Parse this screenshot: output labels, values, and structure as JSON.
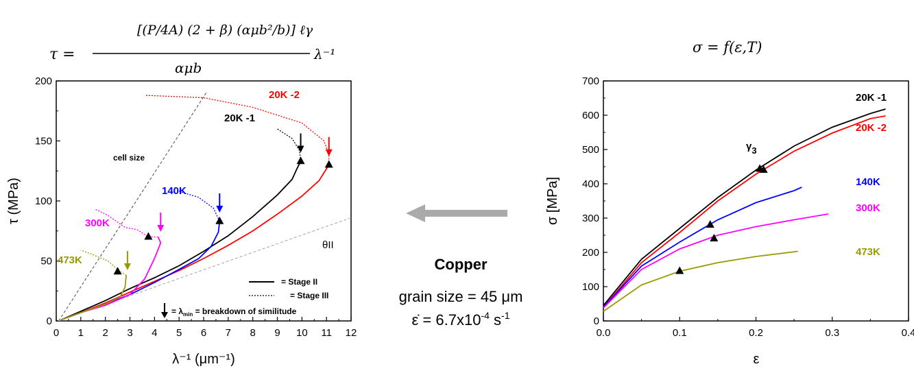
{
  "equation_left": {
    "lhs": "τ =",
    "numerator": "[(P/4A) (2 + β) (αμb²/b)] ℓγ",
    "denominator": "αμb",
    "factor": "λ⁻¹"
  },
  "equation_right": "σ = f(ε,T)",
  "center": {
    "title": "Copper",
    "line1": "grain size = 45 μm",
    "line2_prefix": "ε̇ = 6.7x10",
    "line2_exp": "-4",
    "line2_unit": " s",
    "line2_unit_exp": "-1"
  },
  "chart_data": [
    {
      "type": "line",
      "xlabel": "λ⁻¹ (μm⁻¹)",
      "ylabel": "τ (MPa)",
      "xlim": [
        0,
        12
      ],
      "ylim": [
        0,
        200
      ],
      "xticks": [
        0,
        1,
        2,
        3,
        4,
        5,
        6,
        7,
        8,
        9,
        10,
        11,
        12
      ],
      "yticks": [
        0,
        50,
        100,
        150,
        200
      ],
      "series": [
        {
          "name": "20K -1",
          "color": "#000000",
          "stage_ii": [
            [
              0.2,
              1
            ],
            [
              1,
              8
            ],
            [
              2,
              17
            ],
            [
              3,
              27
            ],
            [
              4,
              36
            ],
            [
              5,
              46
            ],
            [
              6,
              58
            ],
            [
              7,
              71
            ],
            [
              8,
              87
            ],
            [
              9,
              105
            ],
            [
              9.6,
              118
            ],
            [
              9.8,
              127
            ],
            [
              9.95,
              133
            ]
          ],
          "stage_iii": [
            [
              9.95,
              133
            ],
            [
              9.9,
              142
            ],
            [
              9.6,
              152
            ],
            [
              9,
              160
            ]
          ],
          "marker": [
            9.95,
            133
          ],
          "arrow": [
            9.95,
            146
          ]
        },
        {
          "name": "20K -2",
          "color": "#ff0000",
          "stage_ii": [
            [
              0.2,
              1
            ],
            [
              1,
              7
            ],
            [
              2,
              15
            ],
            [
              3,
              24
            ],
            [
              4,
              33
            ],
            [
              5,
              42
            ],
            [
              6,
              52
            ],
            [
              7,
              63
            ],
            [
              8,
              75
            ],
            [
              9,
              89
            ],
            [
              10,
              104
            ],
            [
              10.7,
              117
            ],
            [
              11.1,
              130
            ]
          ],
          "stage_iii": [
            [
              11.1,
              130
            ],
            [
              11.1,
              138
            ],
            [
              10.9,
              150
            ],
            [
              10,
              165
            ],
            [
              8,
              178
            ],
            [
              6,
              186
            ],
            [
              3.6,
              188
            ]
          ],
          "marker": [
            11.1,
            130
          ],
          "arrow": [
            11.1,
            143
          ]
        },
        {
          "name": "140K",
          "color": "#0000ff",
          "stage_ii": [
            [
              0.2,
              1
            ],
            [
              1,
              7
            ],
            [
              2,
              14
            ],
            [
              3,
              22
            ],
            [
              4,
              32
            ],
            [
              5,
              43
            ],
            [
              5.8,
              52
            ],
            [
              6.3,
              62
            ],
            [
              6.6,
              74
            ],
            [
              6.65,
              83
            ]
          ],
          "stage_iii": [
            [
              6.65,
              83
            ],
            [
              6.4,
              94
            ],
            [
              5.8,
              103
            ],
            [
              5,
              108
            ]
          ],
          "marker": [
            6.65,
            83
          ],
          "arrow": [
            6.65,
            96
          ]
        },
        {
          "name": "300K",
          "color": "#ff00ff",
          "stage_ii": [
            [
              0.2,
              1
            ],
            [
              1,
              7
            ],
            [
              2,
              13
            ],
            [
              3,
              22
            ],
            [
              3.6,
              35
            ],
            [
              4,
              52
            ],
            [
              4.25,
              65
            ],
            [
              4.15,
              70
            ]
          ],
          "stage_iii": [
            [
              4.15,
              70
            ],
            [
              3.75,
              70
            ],
            [
              3.3,
              76
            ],
            [
              2.8,
              78
            ],
            [
              2.1,
              88
            ],
            [
              1.6,
              93
            ]
          ],
          "marker": [
            3.75,
            70
          ],
          "arrow": [
            4.25,
            80
          ]
        },
        {
          "name": "473K",
          "color": "#999900",
          "stage_ii": [
            [
              0.2,
              1
            ],
            [
              1,
              7
            ],
            [
              2,
              14
            ],
            [
              2.6,
              20
            ],
            [
              2.8,
              28
            ],
            [
              2.85,
              38
            ]
          ],
          "stage_iii": [
            [
              2.85,
              38
            ],
            [
              2.55,
              42
            ],
            [
              2.1,
              50
            ],
            [
              1.4,
              56
            ],
            [
              1.0,
              59
            ]
          ],
          "marker": [
            2.5,
            41
          ],
          "arrow": [
            2.9,
            48
          ]
        }
      ],
      "reference_lines": [
        {
          "name": "cell size",
          "points": [
            [
              0.1,
              0
            ],
            [
              6.1,
              190
            ]
          ],
          "color": "#555555"
        },
        {
          "name": "θII",
          "points": [
            [
              0.1,
              0
            ],
            [
              12,
              86
            ]
          ],
          "color": "#aaaaaa"
        }
      ],
      "legend": {
        "stage_ii": "= Stage II",
        "stage_iii": "= Stage III",
        "arrow_note_prefix": "= λ",
        "arrow_note_sub": "min",
        "arrow_note_suffix": " = breakdown of similitude"
      }
    },
    {
      "type": "line",
      "xlabel": "ε",
      "ylabel": "σ [MPa]",
      "xlim": [
        0,
        0.4
      ],
      "ylim": [
        0,
        700
      ],
      "xticks": [
        0.0,
        0.1,
        0.2,
        0.3,
        0.4
      ],
      "yticks": [
        0,
        100,
        200,
        300,
        400,
        500,
        600,
        700
      ],
      "annotation": "γ",
      "annotation_sub": "3",
      "series": [
        {
          "name": "20K -1",
          "color": "#000000",
          "points": [
            [
              0,
              45
            ],
            [
              0.05,
              180
            ],
            [
              0.1,
              270
            ],
            [
              0.15,
              360
            ],
            [
              0.2,
              440
            ],
            [
              0.25,
              510
            ],
            [
              0.3,
              565
            ],
            [
              0.35,
              605
            ],
            [
              0.37,
              618
            ]
          ],
          "marker": [
            0.205,
            443
          ]
        },
        {
          "name": "20K -2",
          "color": "#ff0000",
          "points": [
            [
              0,
              40
            ],
            [
              0.05,
              170
            ],
            [
              0.1,
              258
            ],
            [
              0.15,
              350
            ],
            [
              0.2,
              428
            ],
            [
              0.25,
              495
            ],
            [
              0.3,
              548
            ],
            [
              0.35,
              590
            ],
            [
              0.37,
              598
            ]
          ],
          "marker": [
            0.21,
            440
          ]
        },
        {
          "name": "140K",
          "color": "#0000ff",
          "points": [
            [
              0,
              40
            ],
            [
              0.05,
              160
            ],
            [
              0.1,
              230
            ],
            [
              0.15,
              295
            ],
            [
              0.2,
              345
            ],
            [
              0.25,
              380
            ],
            [
              0.26,
              390
            ]
          ],
          "marker": [
            0.14,
            280
          ]
        },
        {
          "name": "300K",
          "color": "#ff00ff",
          "points": [
            [
              0,
              38
            ],
            [
              0.05,
              150
            ],
            [
              0.1,
              210
            ],
            [
              0.15,
              250
            ],
            [
              0.2,
              275
            ],
            [
              0.25,
              295
            ],
            [
              0.295,
              312
            ]
          ],
          "marker": [
            0.145,
            240
          ]
        },
        {
          "name": "473K",
          "color": "#999900",
          "points": [
            [
              0,
              28
            ],
            [
              0.05,
              105
            ],
            [
              0.1,
              145
            ],
            [
              0.15,
              170
            ],
            [
              0.2,
              188
            ],
            [
              0.255,
              203
            ]
          ],
          "marker": [
            0.1,
            145
          ]
        }
      ]
    }
  ]
}
